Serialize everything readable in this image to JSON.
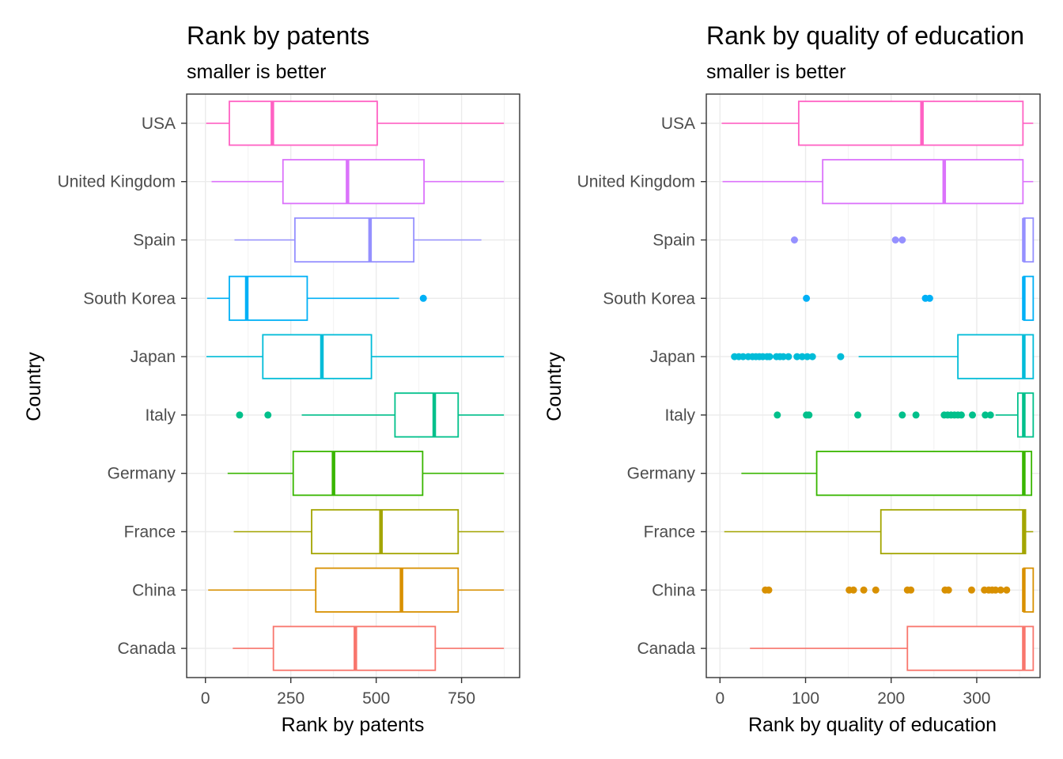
{
  "chart_data": [
    {
      "type": "boxplot",
      "orientation": "horizontal",
      "title": "Rank by  patents",
      "subtitle": "smaller is better",
      "xlabel": "Rank by  patents",
      "ylabel": "Country",
      "xlim": [
        -55,
        920
      ],
      "xticks": [
        0,
        250,
        500,
        750
      ],
      "grid": true,
      "legend": "none",
      "categories": [
        "USA",
        "United Kingdom",
        "Spain",
        "South Korea",
        "Japan",
        "Italy",
        "Germany",
        "France",
        "China",
        "Canada"
      ],
      "colors": [
        "#FF61C3",
        "#DB72FB",
        "#93AA00",
        "#00B9E3",
        "#00BFC4",
        "#00C19F",
        "#53B400",
        "#A3A500",
        "#D39200",
        "#F8766D"
      ],
      "series": [
        {
          "category": "USA",
          "color": "#FF61C3",
          "min": 2,
          "q1": 70,
          "median": 196,
          "q3": 503,
          "max": 874,
          "outliers": []
        },
        {
          "category": "United Kingdom",
          "color": "#DB72FB",
          "min": 18,
          "q1": 227,
          "median": 416,
          "q3": 640,
          "max": 874,
          "outliers": []
        },
        {
          "category": "Spain",
          "color": "#9590FF",
          "min": 85,
          "q1": 262,
          "median": 482,
          "q3": 610,
          "max": 808,
          "outliers": []
        },
        {
          "category": "South Korea",
          "color": "#00B0F6",
          "min": 5,
          "q1": 70,
          "median": 121,
          "q3": 298,
          "max": 567,
          "outliers": [
            638
          ]
        },
        {
          "category": "Japan",
          "color": "#00BCD8",
          "min": 3,
          "q1": 168,
          "median": 341,
          "q3": 486,
          "max": 874,
          "outliers": []
        },
        {
          "category": "Italy",
          "color": "#00C08B",
          "min": 282,
          "q1": 555,
          "median": 670,
          "q3": 740,
          "max": 874,
          "outliers": [
            100,
            183
          ]
        },
        {
          "category": "Germany",
          "color": "#39B600",
          "min": 65,
          "q1": 257,
          "median": 375,
          "q3": 636,
          "max": 874,
          "outliers": []
        },
        {
          "category": "France",
          "color": "#A3A500",
          "min": 83,
          "q1": 311,
          "median": 514,
          "q3": 740,
          "max": 874,
          "outliers": []
        },
        {
          "category": "China",
          "color": "#D89000",
          "min": 8,
          "q1": 323,
          "median": 574,
          "q3": 740,
          "max": 874,
          "outliers": []
        },
        {
          "category": "Canada",
          "color": "#F8766D",
          "min": 80,
          "q1": 199,
          "median": 439,
          "q3": 673,
          "max": 874,
          "outliers": []
        }
      ]
    },
    {
      "type": "boxplot",
      "orientation": "horizontal",
      "title": "Rank by  quality of education",
      "subtitle": "smaller is better",
      "xlabel": "Rank by  quality of education",
      "ylabel": "Country",
      "xlim": [
        -16,
        374
      ],
      "xticks": [
        0,
        100,
        200,
        300
      ],
      "grid": true,
      "legend": "none",
      "categories": [
        "USA",
        "United Kingdom",
        "Spain",
        "South Korea",
        "Japan",
        "Italy",
        "Germany",
        "France",
        "China",
        "Canada"
      ],
      "series": [
        {
          "category": "USA",
          "color": "#FF61C3",
          "min": 2,
          "q1": 92,
          "median": 236,
          "q3": 354,
          "max": 366,
          "outliers": []
        },
        {
          "category": "United Kingdom",
          "color": "#DB72FB",
          "min": 3,
          "q1": 120,
          "median": 262,
          "q3": 354,
          "max": 366,
          "outliers": []
        },
        {
          "category": "Spain",
          "color": "#9590FF",
          "min": 354,
          "q1": 355,
          "median": 355,
          "q3": 366,
          "max": 366,
          "outliers": [
            87,
            205,
            213
          ]
        },
        {
          "category": "South Korea",
          "color": "#00B0F6",
          "min": 354,
          "q1": 355,
          "median": 355,
          "q3": 366,
          "max": 366,
          "outliers": [
            101,
            240,
            245
          ]
        },
        {
          "category": "Japan",
          "color": "#00BCD8",
          "min": 162,
          "q1": 278,
          "median": 355,
          "q3": 366,
          "max": 366,
          "outliers": [
            17,
            22,
            27,
            33,
            38,
            42,
            46,
            50,
            55,
            58,
            66,
            70,
            74,
            80,
            90,
            96,
            102,
            108,
            141
          ]
        },
        {
          "category": "Italy",
          "color": "#00C08B",
          "min": 322,
          "q1": 348,
          "median": 355,
          "q3": 366,
          "max": 366,
          "outliers": [
            67,
            101,
            104,
            161,
            213,
            229,
            262,
            266,
            270,
            274,
            278,
            282,
            295,
            310,
            316
          ]
        },
        {
          "category": "Germany",
          "color": "#39B600",
          "min": 25,
          "q1": 113,
          "median": 355,
          "q3": 364,
          "max": 364,
          "outliers": []
        },
        {
          "category": "France",
          "color": "#A3A500",
          "min": 5,
          "q1": 188,
          "median": 355,
          "q3": 357,
          "max": 366,
          "outliers": []
        },
        {
          "category": "China",
          "color": "#D89000",
          "min": 354,
          "q1": 355,
          "median": 355,
          "q3": 366,
          "max": 366,
          "outliers": [
            53,
            57,
            151,
            156,
            168,
            182,
            219,
            223,
            263,
            267,
            294,
            309,
            314,
            318,
            322,
            328,
            335
          ]
        },
        {
          "category": "Canada",
          "color": "#F8766D",
          "min": 35,
          "q1": 219,
          "median": 355,
          "q3": 366,
          "max": 366,
          "outliers": []
        }
      ]
    }
  ]
}
